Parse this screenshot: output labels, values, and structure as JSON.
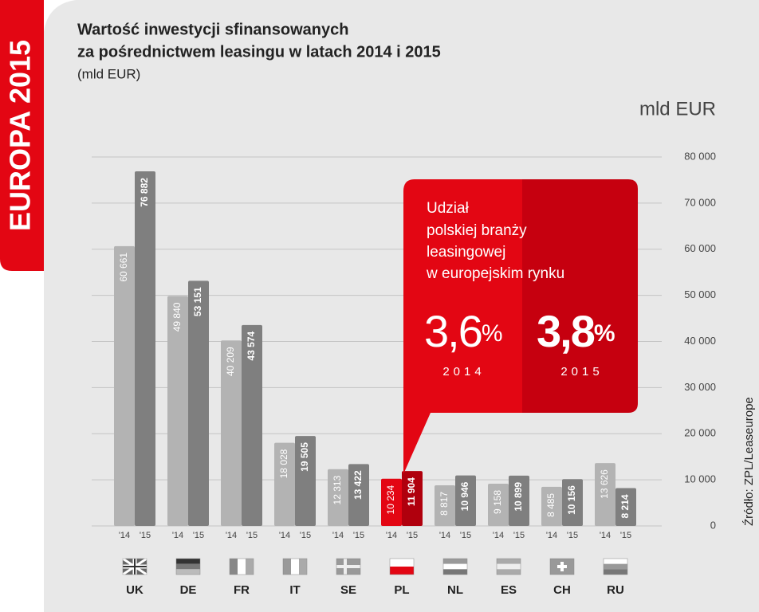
{
  "chart_data": {
    "type": "bar",
    "side_label": "EUROPA 2015",
    "title_lines": [
      "Wartość inwestycji sfinansowanych",
      "za pośrednictwem leasingu w latach 2014 i 2015"
    ],
    "subtitle": "(mld EUR)",
    "y_unit": "mld EUR",
    "source": "Źródło: ZPL/Leaseurope",
    "categories": [
      "UK",
      "DE",
      "FR",
      "IT",
      "SE",
      "PL",
      "NL",
      "ES",
      "CH",
      "RU"
    ],
    "highlight_category": "PL",
    "series": [
      {
        "name": "'14",
        "color": "#b3b3b3",
        "highlight_color": "#e30613",
        "values": [
          60661,
          49840,
          40209,
          18028,
          12313,
          10234,
          8817,
          9158,
          8485,
          13626
        ],
        "value_labels": [
          "60 661",
          "49 840",
          "40 209",
          "18 028",
          "12 313",
          "10 234",
          "8 817",
          "9 158",
          "8 485",
          "13 626"
        ]
      },
      {
        "name": "'15",
        "color": "#7f7f7f",
        "highlight_color": "#b0000d",
        "values": [
          76882,
          53151,
          43574,
          19505,
          13422,
          11904,
          10946,
          10899,
          10156,
          8214
        ],
        "value_labels": [
          "76 882",
          "53 151",
          "43 574",
          "19 505",
          "13 422",
          "11 904",
          "10 946",
          "10 899",
          "10 156",
          "8 214"
        ]
      }
    ],
    "ylim": [
      0,
      80000
    ],
    "yticks": [
      0,
      {
        "value": 10000,
        "label": "10 000"
      },
      {
        "value": 20000,
        "label": "20 000"
      },
      {
        "value": 30000,
        "label": "30 000"
      },
      {
        "value": 40000,
        "label": "40 000"
      },
      {
        "value": 50000,
        "label": "50 000"
      },
      {
        "value": 60000,
        "label": "60 000"
      },
      {
        "value": 70000,
        "label": "70 000"
      },
      {
        "value": 80000,
        "label": "80 000"
      }
    ],
    "grid": true,
    "annotation": {
      "lines": [
        "Udział",
        "polskiej branży",
        "leasingowej",
        "w europejskim rynku"
      ],
      "shares": [
        {
          "number": "3,6",
          "unit": "%",
          "year": "2014"
        },
        {
          "number": "3,8",
          "unit": "%",
          "year": "2015"
        }
      ]
    }
  }
}
